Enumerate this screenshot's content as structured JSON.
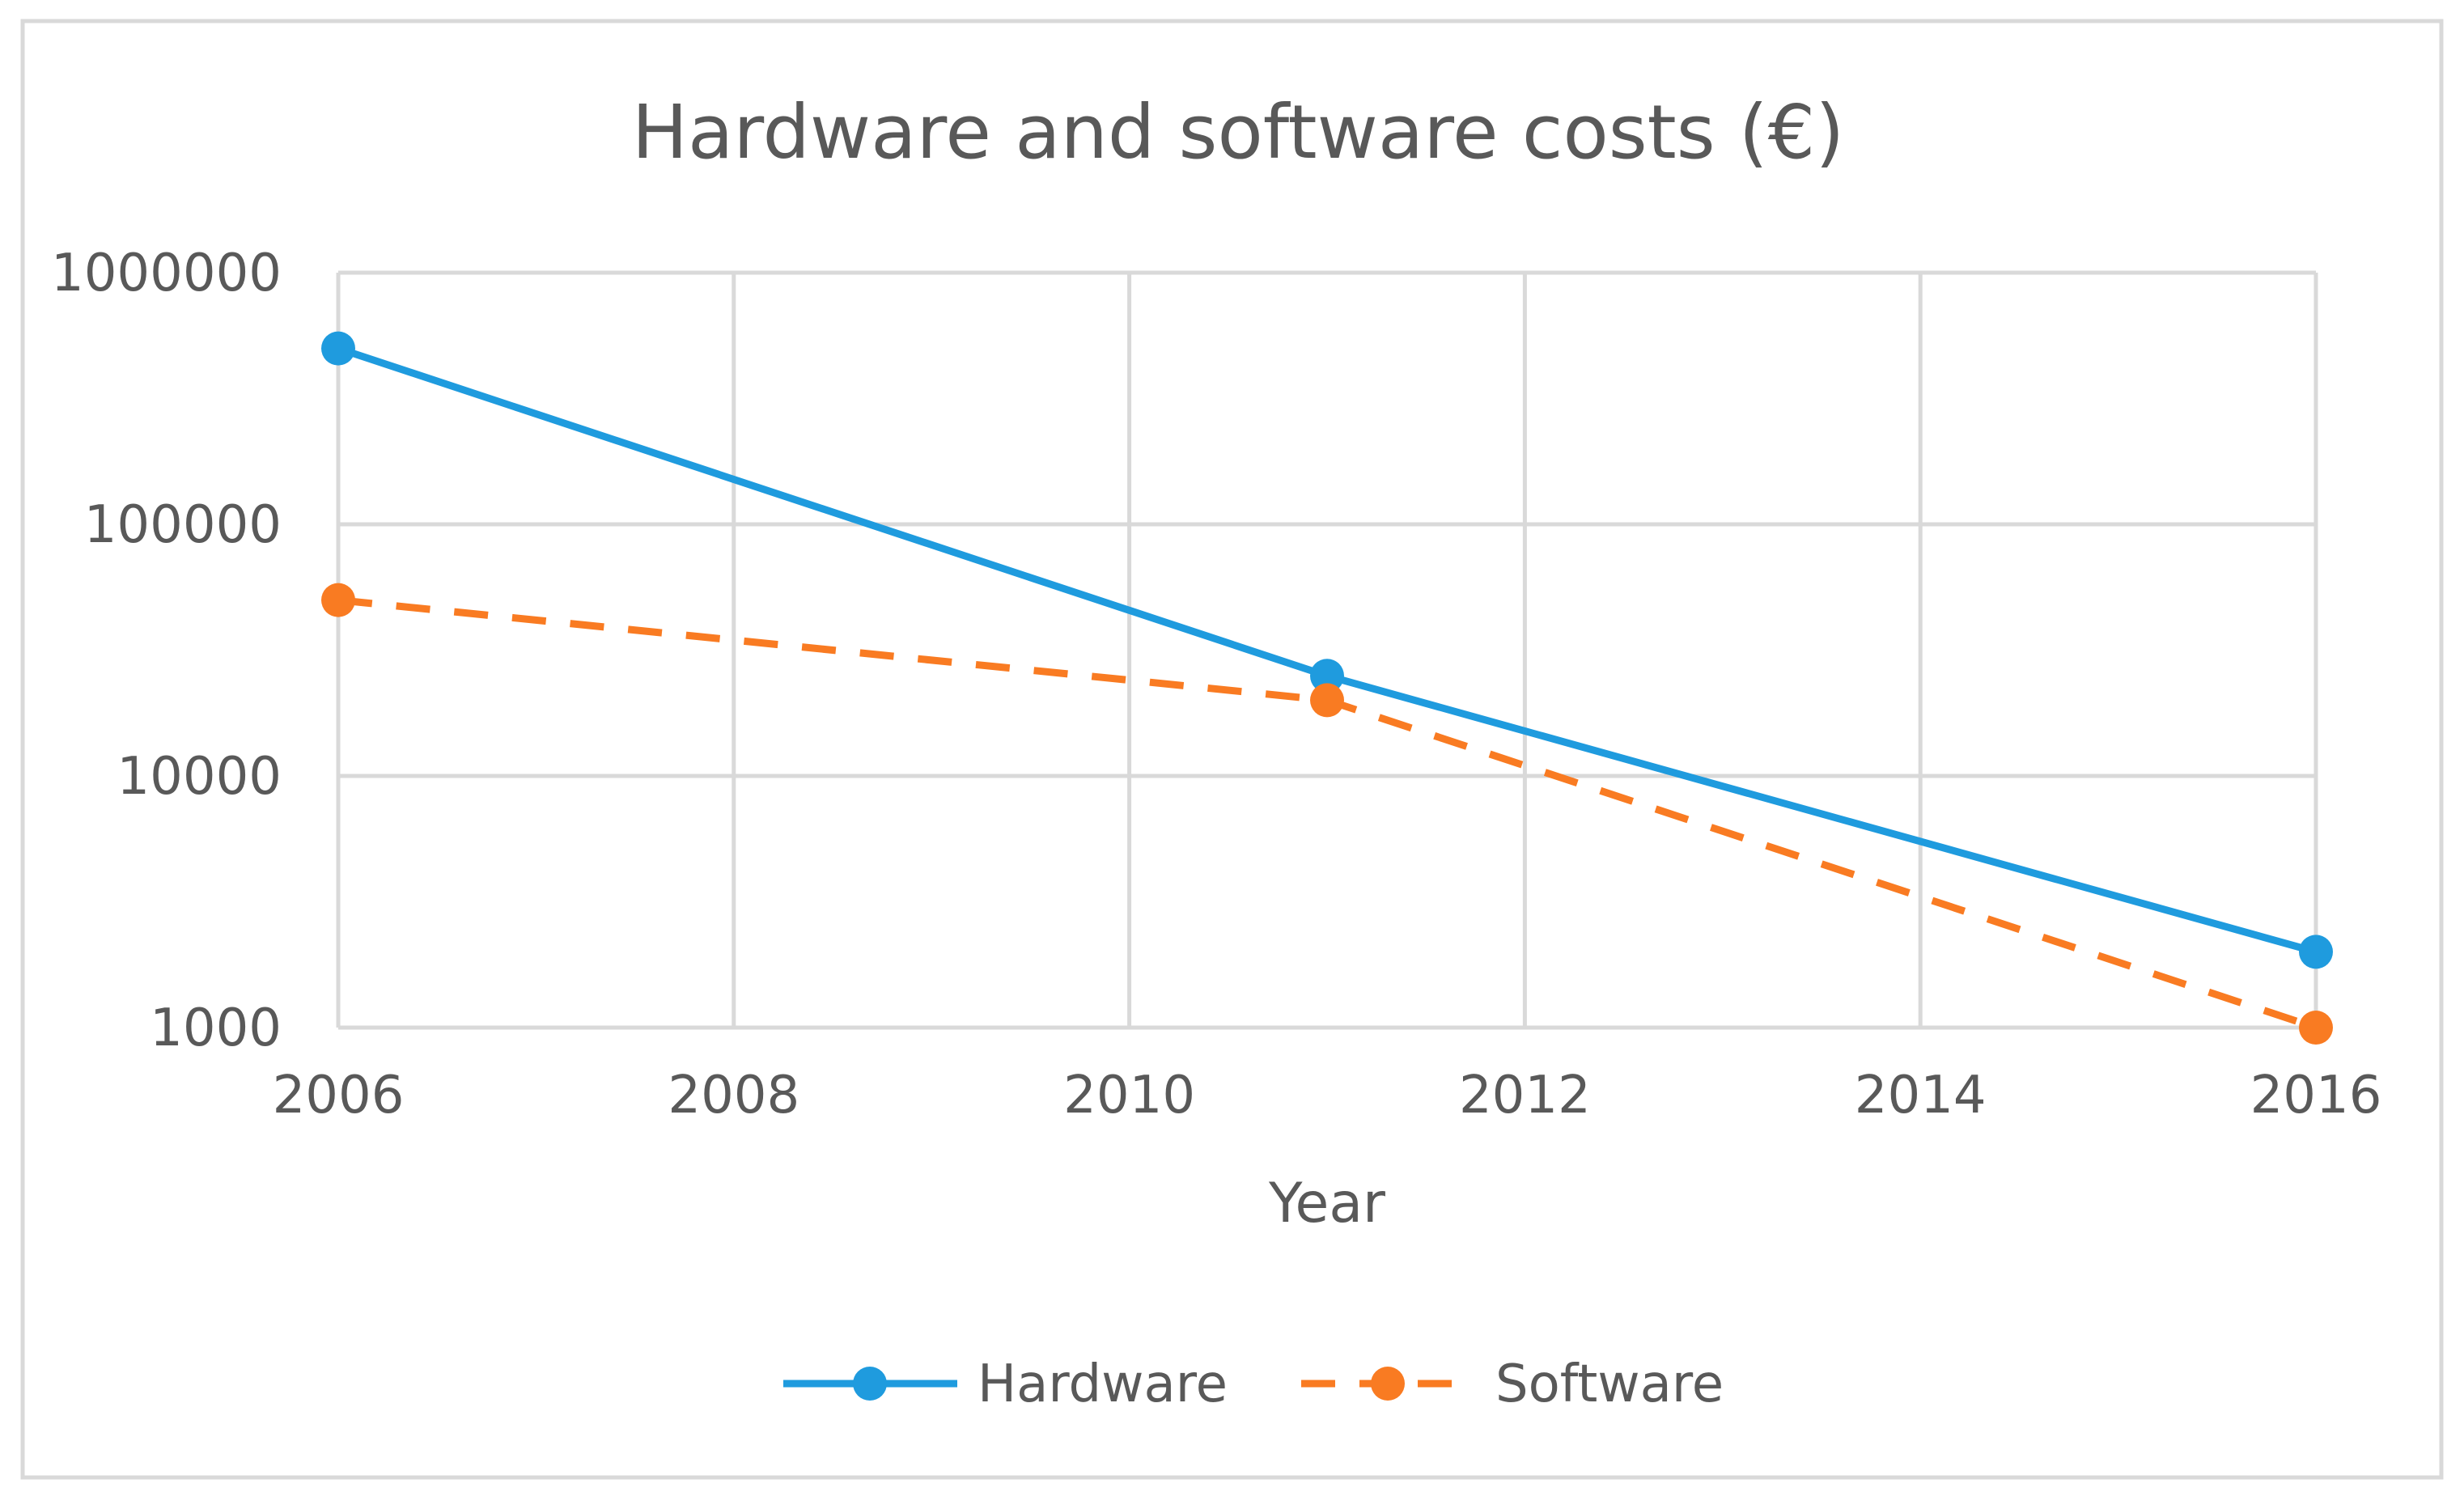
{
  "chart_data": {
    "type": "line",
    "title": "Hardware and software costs (€)",
    "xlabel": "Year",
    "ylabel": "",
    "y_scale": "log",
    "xlim": [
      2006,
      2016
    ],
    "ylim": [
      1000,
      1000000
    ],
    "x_ticks": [
      "2006",
      "2008",
      "2010",
      "2012",
      "2014",
      "2016"
    ],
    "y_ticks": [
      "1000",
      "10000",
      "100000",
      "1000000"
    ],
    "grid": true,
    "legend_position": "bottom",
    "series": [
      {
        "name": "Hardware",
        "color": "#1F9BDE",
        "line_style": "solid",
        "x": [
          2006,
          2011,
          2016
        ],
        "values": [
          500000,
          25000,
          2000
        ]
      },
      {
        "name": "Software",
        "color": "#F97B22",
        "line_style": "dashed",
        "x": [
          2006,
          2011,
          2016
        ],
        "values": [
          50000,
          20000,
          1000
        ]
      }
    ]
  }
}
